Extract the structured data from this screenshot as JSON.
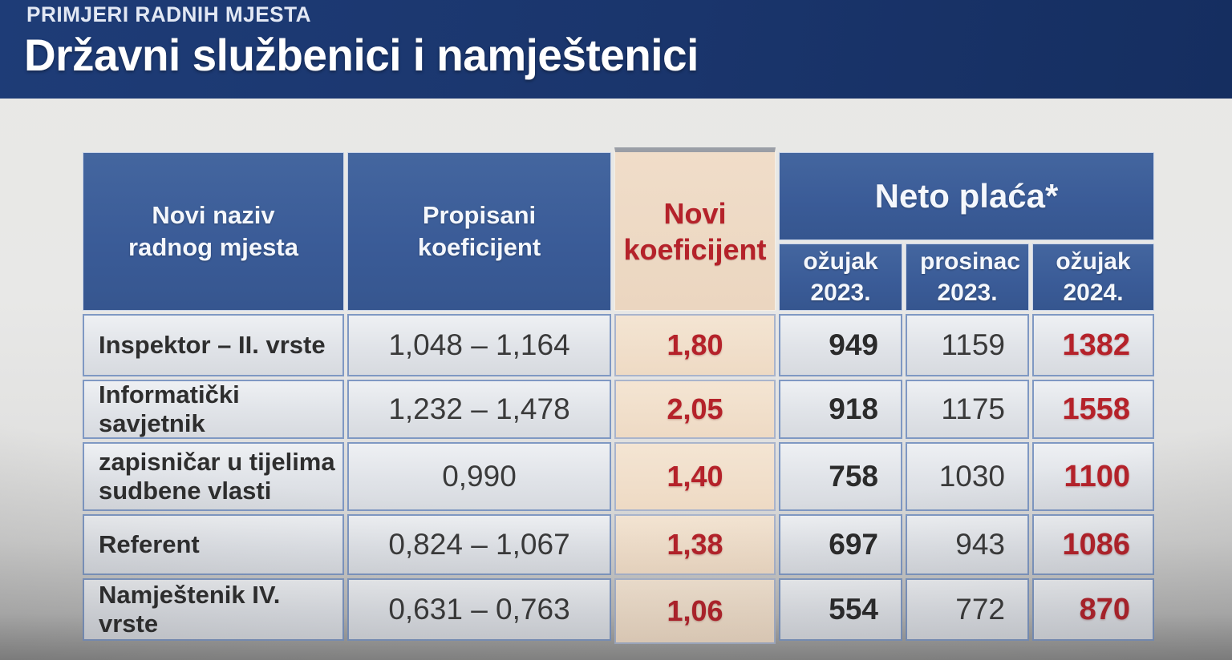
{
  "header": {
    "kicker": "PRIMJERI RADNIH MJESTA",
    "title": "Državni službenici i namještenici"
  },
  "table": {
    "columns": {
      "job_title": "Novi naziv radnog mjesta",
      "prescribed_coefficient": "Propisani koeficijent",
      "new_coefficient": "Novi koeficijent",
      "net_salary_group": "Neto plaća*",
      "sub_mar_2023": "ožujak 2023.",
      "sub_dec_2023": "prosinac 2023.",
      "sub_mar_2024": "ožujak 2024."
    },
    "rows": [
      {
        "name": "Inspektor – II. vrste",
        "prescribed": "1,048 – 1,164",
        "new_coef": "1,80",
        "net_mar_2023": "949",
        "net_dec_2023": "1159",
        "net_mar_2024": "1382"
      },
      {
        "name": "Informatički savjetnik",
        "prescribed": "1,232 – 1,478",
        "new_coef": "2,05",
        "net_mar_2023": "918",
        "net_dec_2023": "1175",
        "net_mar_2024": "1558"
      },
      {
        "name": "zapisničar u tijelima sudbene vlasti",
        "prescribed": "0,990",
        "new_coef": "1,40",
        "net_mar_2023": "758",
        "net_dec_2023": "1030",
        "net_mar_2024": "1100"
      },
      {
        "name": "Referent",
        "prescribed": "0,824 – 1,067",
        "new_coef": "1,38",
        "net_mar_2023": "697",
        "net_dec_2023": "943",
        "net_mar_2024": "1086"
      },
      {
        "name": "Namještenik IV. vrste",
        "prescribed": "0,631 – 0,763",
        "new_coef": "1,06",
        "net_mar_2023": "554",
        "net_dec_2023": "772",
        "net_mar_2024": "870"
      }
    ]
  },
  "chart_data": {
    "type": "table",
    "title": "Državni službenici i namještenici",
    "categories": [
      "Inspektor – II. vrste",
      "Informatički savjetnik",
      "zapisničar u tijelima sudbene vlasti",
      "Referent",
      "Namještenik IV. vrste"
    ],
    "series": [
      {
        "name": "Neto plaća ožujak 2023.",
        "values": [
          949,
          918,
          758,
          697,
          554
        ]
      },
      {
        "name": "Neto plaća prosinac 2023.",
        "values": [
          1159,
          1175,
          1030,
          943,
          772
        ]
      },
      {
        "name": "Neto plaća ožujak 2024.",
        "values": [
          1382,
          1558,
          1100,
          1086,
          870
        ]
      }
    ]
  },
  "colors": {
    "banner_navy": "#1a356c",
    "header_blue": "#3a5b97",
    "highlight_peach": "#eedac4",
    "accent_red": "#b5222a",
    "cell_gray": "#e0e3e8",
    "border_blue": "#7f98c3",
    "page_bg": "#e8e8e7"
  }
}
